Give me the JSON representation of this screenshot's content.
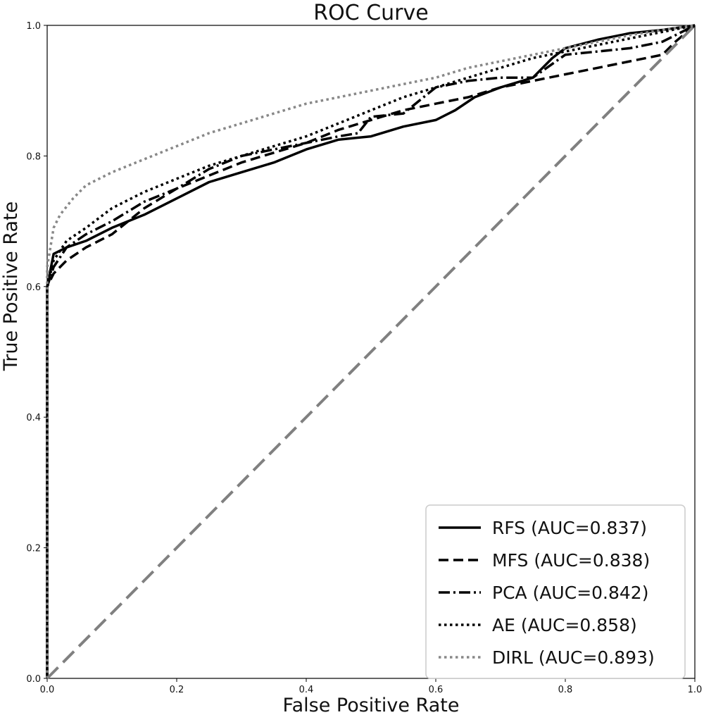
{
  "chart_data": {
    "type": "line",
    "title": "ROC Curve",
    "xlabel": "False Positive Rate",
    "ylabel": "True Positive Rate",
    "xlim": [
      0.0,
      1.0
    ],
    "ylim": [
      0.0,
      1.0
    ],
    "xticks": [
      "0.0",
      "0.2",
      "0.4",
      "0.6",
      "0.8",
      "1.0"
    ],
    "yticks": [
      "0.0",
      "0.2",
      "0.4",
      "0.6",
      "0.8",
      "1.0"
    ],
    "grid": false,
    "legend_position": "bottom-right",
    "series": [
      {
        "name": "RFS",
        "label": "RFS (AUC=0.837)",
        "color": "#000000",
        "style": "solid",
        "x": [
          0,
          0,
          0.01,
          0.03,
          0.06,
          0.1,
          0.15,
          0.2,
          0.25,
          0.3,
          0.35,
          0.4,
          0.45,
          0.5,
          0.55,
          0.6,
          0.63,
          0.66,
          0.7,
          0.75,
          0.78,
          0.8,
          0.85,
          0.9,
          0.95,
          1.0
        ],
        "y": [
          0,
          0.6,
          0.65,
          0.66,
          0.67,
          0.69,
          0.71,
          0.735,
          0.76,
          0.775,
          0.79,
          0.81,
          0.825,
          0.83,
          0.845,
          0.855,
          0.87,
          0.89,
          0.905,
          0.92,
          0.95,
          0.965,
          0.978,
          0.988,
          0.993,
          1.0
        ]
      },
      {
        "name": "MFS",
        "label": "MFS (AUC=0.838)",
        "color": "#000000",
        "style": "dashed",
        "x": [
          0,
          0,
          0.01,
          0.03,
          0.06,
          0.1,
          0.15,
          0.2,
          0.25,
          0.3,
          0.35,
          0.4,
          0.45,
          0.5,
          0.55,
          0.6,
          0.65,
          0.7,
          0.75,
          0.8,
          0.85,
          0.9,
          0.95,
          0.97,
          1.0
        ],
        "y": [
          0,
          0.6,
          0.62,
          0.64,
          0.66,
          0.68,
          0.72,
          0.75,
          0.77,
          0.79,
          0.805,
          0.82,
          0.84,
          0.855,
          0.87,
          0.88,
          0.89,
          0.905,
          0.915,
          0.925,
          0.935,
          0.945,
          0.955,
          0.975,
          1.0
        ]
      },
      {
        "name": "PCA",
        "label": "PCA (AUC=0.842)",
        "color": "#000000",
        "style": "dashdot",
        "x": [
          0,
          0,
          0.01,
          0.03,
          0.06,
          0.1,
          0.15,
          0.2,
          0.25,
          0.3,
          0.35,
          0.4,
          0.45,
          0.48,
          0.5,
          0.55,
          0.6,
          0.65,
          0.7,
          0.75,
          0.8,
          0.85,
          0.9,
          0.95,
          0.98,
          1.0
        ],
        "y": [
          0,
          0.6,
          0.63,
          0.66,
          0.68,
          0.7,
          0.73,
          0.75,
          0.78,
          0.8,
          0.81,
          0.82,
          0.83,
          0.835,
          0.86,
          0.865,
          0.905,
          0.915,
          0.92,
          0.92,
          0.955,
          0.96,
          0.965,
          0.975,
          0.99,
          1.0
        ]
      },
      {
        "name": "AE",
        "label": "AE (AUC=0.858)",
        "color": "#000000",
        "style": "dotted",
        "x": [
          0,
          0,
          0.01,
          0.03,
          0.06,
          0.1,
          0.15,
          0.2,
          0.25,
          0.3,
          0.35,
          0.4,
          0.45,
          0.5,
          0.55,
          0.6,
          0.65,
          0.7,
          0.75,
          0.8,
          0.85,
          0.9,
          0.95,
          1.0
        ],
        "y": [
          0,
          0.6,
          0.64,
          0.67,
          0.69,
          0.72,
          0.745,
          0.765,
          0.785,
          0.8,
          0.815,
          0.83,
          0.85,
          0.87,
          0.89,
          0.905,
          0.92,
          0.935,
          0.95,
          0.96,
          0.97,
          0.98,
          0.99,
          1.0
        ]
      },
      {
        "name": "DIRL",
        "label": "DIRL (AUC=0.893)",
        "color": "#888888",
        "style": "dotted",
        "x": [
          0,
          0,
          0.005,
          0.01,
          0.02,
          0.04,
          0.06,
          0.1,
          0.15,
          0.2,
          0.25,
          0.3,
          0.35,
          0.4,
          0.45,
          0.5,
          0.55,
          0.6,
          0.65,
          0.7,
          0.75,
          0.8,
          0.85,
          0.9,
          0.95,
          1.0
        ],
        "y": [
          0,
          0.63,
          0.66,
          0.69,
          0.71,
          0.735,
          0.755,
          0.775,
          0.795,
          0.815,
          0.835,
          0.85,
          0.865,
          0.88,
          0.89,
          0.9,
          0.91,
          0.92,
          0.935,
          0.945,
          0.955,
          0.965,
          0.975,
          0.985,
          0.993,
          1.0
        ]
      },
      {
        "name": "Chance",
        "label": "",
        "color": "#808080",
        "style": "diagonal",
        "x": [
          0.0,
          1.0
        ],
        "y": [
          0.0,
          1.0
        ]
      }
    ]
  }
}
